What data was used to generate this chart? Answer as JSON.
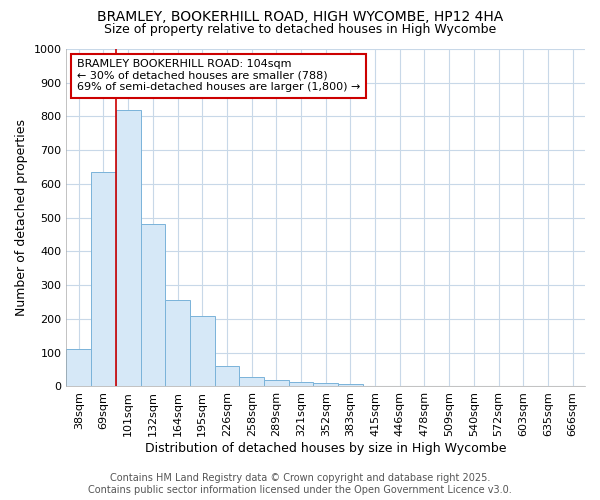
{
  "title": "BRAMLEY, BOOKERHILL ROAD, HIGH WYCOMBE, HP12 4HA",
  "subtitle": "Size of property relative to detached houses in High Wycombe",
  "xlabel": "Distribution of detached houses by size in High Wycombe",
  "ylabel": "Number of detached properties",
  "categories": [
    "38sqm",
    "69sqm",
    "101sqm",
    "132sqm",
    "164sqm",
    "195sqm",
    "226sqm",
    "258sqm",
    "289sqm",
    "321sqm",
    "352sqm",
    "383sqm",
    "415sqm",
    "446sqm",
    "478sqm",
    "509sqm",
    "540sqm",
    "572sqm",
    "603sqm",
    "635sqm",
    "666sqm"
  ],
  "values": [
    110,
    635,
    820,
    480,
    255,
    210,
    60,
    28,
    20,
    13,
    10,
    8,
    0,
    0,
    0,
    0,
    0,
    0,
    0,
    0,
    0
  ],
  "bar_color": "#d6e8f7",
  "bar_edge_color": "#7ab3d9",
  "red_line_x": 1.5,
  "red_color": "#cc0000",
  "annotation_text": "BRAMLEY BOOKERHILL ROAD: 104sqm\n← 30% of detached houses are smaller (788)\n69% of semi-detached houses are larger (1,800) →",
  "annotation_box_color": "#ffffff",
  "annotation_box_edge_color": "#cc0000",
  "ylim": [
    0,
    1000
  ],
  "yticks": [
    0,
    100,
    200,
    300,
    400,
    500,
    600,
    700,
    800,
    900,
    1000
  ],
  "footer_line1": "Contains HM Land Registry data © Crown copyright and database right 2025.",
  "footer_line2": "Contains public sector information licensed under the Open Government Licence v3.0.",
  "fig_background_color": "#ffffff",
  "plot_background_color": "#ffffff",
  "grid_color": "#c8d8e8",
  "title_fontsize": 10,
  "subtitle_fontsize": 9,
  "axis_label_fontsize": 9,
  "tick_fontsize": 8,
  "footer_fontsize": 7,
  "annotation_fontsize": 8
}
